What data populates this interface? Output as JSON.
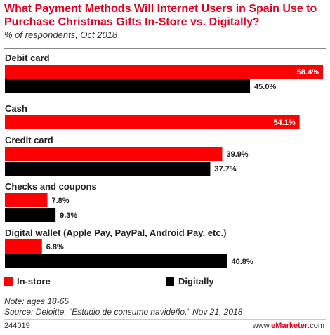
{
  "title": "What Payment Methods Will Internet Users in Spain Use to Purchase Christmas Gifts In-Store vs. Digitally?",
  "subtitle": "% of respondents, Oct 2018",
  "chart_data": {
    "type": "bar",
    "orientation": "horizontal",
    "categories": [
      "Debit card",
      "Cash",
      "Credit card",
      "Checks and coupons",
      "Digital wallet (Apple Pay, PayPal, Android Pay, etc.)"
    ],
    "series": [
      {
        "name": "In-store",
        "color": "#ff0000",
        "values": [
          58.4,
          54.1,
          39.9,
          7.8,
          6.8
        ],
        "labels": [
          "58.4%",
          "54.1%",
          "39.9%",
          "7.8%",
          "6.8%"
        ]
      },
      {
        "name": "Digitally",
        "color": "#000000",
        "values": [
          45.0,
          null,
          37.7,
          9.3,
          40.8
        ],
        "labels": [
          "45.0%",
          null,
          "37.7%",
          "9.3%",
          "40.8%"
        ]
      }
    ],
    "xlim": [
      0,
      58.4
    ],
    "grid": false,
    "legend_position": "bottom"
  },
  "legend": {
    "in_store": "In-store",
    "digitally": "Digitally"
  },
  "note": "Note: ages 18-65",
  "source": "Source: Deloitte, \"Estudio de consumo navideño,\" Nov 21, 2018",
  "footer": {
    "chart_id": "244019",
    "brand_prefix": "www.",
    "brand_accent": "eMarketer",
    "brand_suffix": ".com"
  }
}
